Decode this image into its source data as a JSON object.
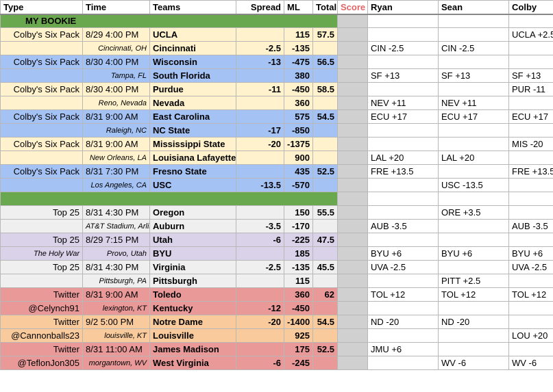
{
  "headers": [
    "Type",
    "Time",
    "Teams",
    "Spread",
    "ML",
    "Total",
    "Score",
    "Ryan",
    "Sean",
    "Colby"
  ],
  "sections": {
    "my_bookie": "MY BOOKIE",
    "divider": ""
  },
  "rows": [
    {
      "theme": "y",
      "type": "Colby's Six Pack",
      "time": "8/29 4:00 PM",
      "team": "UCLA",
      "spread": "",
      "ml": "115",
      "total": "57.5",
      "ryan": "",
      "sean": "",
      "colby": "UCLA +2.5"
    },
    {
      "theme": "y",
      "type": "",
      "time": "Cincinnati, OH",
      "team": "Cincinnati",
      "spread": "-2.5",
      "ml": "-135",
      "total": "",
      "ryan": "CIN -2.5",
      "sean": "CIN -2.5",
      "colby": ""
    },
    {
      "theme": "bl",
      "type": "Colby's Six Pack",
      "time": "8/30 4:00 PM",
      "team": "Wisconsin",
      "spread": "-13",
      "ml": "-475",
      "total": "56.5",
      "ryan": "",
      "sean": "",
      "colby": ""
    },
    {
      "theme": "bl",
      "type": "",
      "time": "Tampa, FL",
      "team": "South Florida",
      "spread": "",
      "ml": "380",
      "total": "",
      "ryan": "SF +13",
      "sean": "SF +13",
      "colby": "SF +13"
    },
    {
      "theme": "y",
      "type": "Colby's Six Pack",
      "time": "8/30  4:00 PM",
      "team": "Purdue",
      "spread": "-11",
      "ml": "-450",
      "total": "58.5",
      "ryan": "",
      "sean": "",
      "colby": "PUR -11"
    },
    {
      "theme": "y",
      "type": "",
      "time": "Reno, Nevada",
      "team": "Nevada",
      "spread": "",
      "ml": "360",
      "total": "",
      "ryan": "NEV +11",
      "sean": "NEV +11",
      "colby": ""
    },
    {
      "theme": "bl",
      "type": "Colby's Six Pack",
      "time": "8/31 9:00 AM",
      "team": "East Carolina",
      "spread": "",
      "ml": "575",
      "total": "54.5",
      "ryan": "ECU +17",
      "sean": "ECU +17",
      "colby": "ECU +17"
    },
    {
      "theme": "bl",
      "type": "",
      "time": "Raleigh, NC",
      "team": "NC State",
      "spread": "-17",
      "ml": "-850",
      "total": "",
      "ryan": "",
      "sean": "",
      "colby": ""
    },
    {
      "theme": "y",
      "type": "Colby's Six Pack",
      "time": "8/31  9:00 AM",
      "team": "Mississippi State",
      "spread": "-20",
      "ml": "-1375",
      "total": "",
      "ryan": "",
      "sean": "",
      "colby": "MIS -20"
    },
    {
      "theme": "y",
      "type": "",
      "time": "New Orleans, LA",
      "team": "Louisiana Lafayette",
      "spread": "",
      "ml": "900",
      "total": "",
      "ryan": "LAL +20",
      "sean": "LAL +20",
      "colby": ""
    },
    {
      "theme": "bl",
      "type": "Colby's Six Pack",
      "time": "8/31 7:30 PM",
      "team": "Fresno State",
      "spread": "",
      "ml": "435",
      "total": "52.5",
      "ryan": "FRE +13.5",
      "sean": "",
      "colby": "FRE +13.5"
    },
    {
      "theme": "bl",
      "type": "",
      "time": "Los Angeles, CA",
      "team": "USC",
      "spread": "-13.5",
      "ml": "-570",
      "total": "",
      "ryan": "",
      "sean": "USC -13.5",
      "colby": ""
    },
    {
      "section": "divider"
    },
    {
      "theme": "gr",
      "type": "Top 25",
      "time": "8/31 4:30 PM",
      "team": "Oregon",
      "spread": "",
      "ml": "150",
      "total": "55.5",
      "ryan": "",
      "sean": "ORE +3.5",
      "colby": ""
    },
    {
      "theme": "gr",
      "type": "",
      "time": "AT&T Stadium, Arlington Texas",
      "team": "Auburn",
      "spread": "-3.5",
      "ml": "-170",
      "total": "",
      "ryan": "AUB -3.5",
      "sean": "",
      "colby": "AUB -3.5"
    },
    {
      "theme": "pu",
      "type": "Top 25",
      "time": "8/29 7:15 PM",
      "team": "Utah",
      "spread": "-6",
      "ml": "-225",
      "total": "47.5",
      "ryan": "",
      "sean": "",
      "colby": ""
    },
    {
      "theme": "pu",
      "type": "The Holy War",
      "time": "Provo, Utah",
      "team": "BYU",
      "spread": "",
      "ml": "185",
      "total": "",
      "ryan": "BYU +6",
      "sean": "BYU +6",
      "colby": "BYU +6"
    },
    {
      "theme": "gr",
      "type": "Top 25",
      "time": "8/31 4:30 PM",
      "team": "Virginia",
      "spread": "-2.5",
      "ml": "-135",
      "total": "45.5",
      "ryan": "UVA -2.5",
      "sean": "",
      "colby": "UVA -2.5"
    },
    {
      "theme": "gr",
      "type": "",
      "time": "Pittsburgh, PA",
      "team": "Pittsburgh",
      "spread": "",
      "ml": "115",
      "total": "",
      "ryan": "",
      "sean": "PITT +2.5",
      "colby": ""
    },
    {
      "theme": "rd",
      "type": "Twitter",
      "time": "8/31 9:00 AM",
      "team": "Toledo",
      "spread": "",
      "ml": "360",
      "total": "62",
      "ryan": "TOL +12",
      "sean": "TOL +12",
      "colby": "TOL +12"
    },
    {
      "theme": "rd",
      "type": "@Celynch91",
      "time": "lexington, KT",
      "team": "Kentucky",
      "spread": "-12",
      "ml": "-450",
      "total": "",
      "ryan": "",
      "sean": "",
      "colby": ""
    },
    {
      "theme": "or",
      "type": "Twitter",
      "time": "9/2 5:00 PM",
      "team": "Notre Dame",
      "spread": "-20",
      "ml": "-1400",
      "total": "54.5",
      "ryan": "ND -20",
      "sean": "ND -20",
      "colby": ""
    },
    {
      "theme": "or",
      "type": "@Cannonballs23",
      "time": "louisville, KT",
      "team": "Louisville",
      "spread": "",
      "ml": "925",
      "total": "",
      "ryan": "",
      "sean": "",
      "colby": "LOU +20"
    },
    {
      "theme": "rd",
      "type": "Twitter",
      "time": "8/31 11:00 AM",
      "team": "James Madison",
      "spread": "",
      "ml": "175",
      "total": "52.5",
      "ryan": "JMU +6",
      "sean": "",
      "colby": ""
    },
    {
      "theme": "rd",
      "type": "@TeflonJon305",
      "time": "morgantown, WV",
      "team": "West Virginia",
      "spread": "-6",
      "ml": "-245",
      "total": "",
      "ryan": "",
      "sean": "WV -6",
      "colby": "WV -6"
    }
  ],
  "colors": {
    "yellow": "#fff2cc",
    "blue": "#a4c2f4",
    "green": "#6aa84f",
    "gray": "#efefef",
    "purple": "#d9d2e9",
    "red": "#ea9999",
    "orange": "#f9cb9c",
    "score_header": "#e06666"
  }
}
